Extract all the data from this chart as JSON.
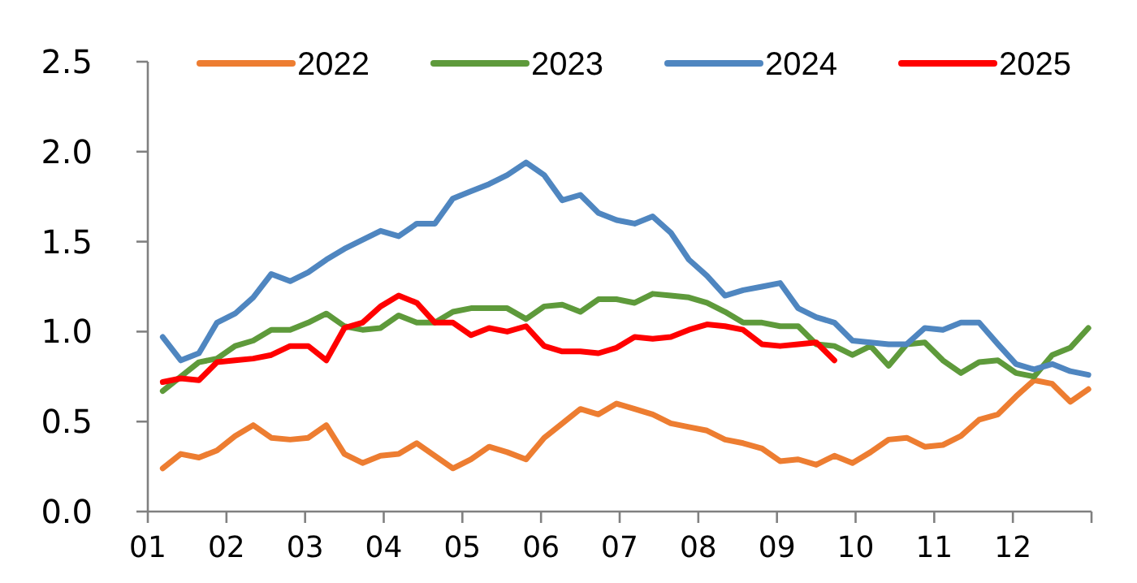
{
  "chart_data": {
    "type": "line",
    "x": [
      1.19,
      1.42,
      1.65,
      1.88,
      2.11,
      2.34,
      2.57,
      2.81,
      3.04,
      3.27,
      3.5,
      3.73,
      3.96,
      4.19,
      4.42,
      4.65,
      4.88,
      5.11,
      5.34,
      5.57,
      5.81,
      6.04,
      6.27,
      6.5,
      6.73,
      6.96,
      7.19,
      7.42,
      7.65,
      7.88,
      8.11,
      8.34,
      8.57,
      8.81,
      9.04,
      9.27,
      9.5,
      9.73,
      9.96,
      10.19,
      10.42,
      10.65,
      10.88,
      11.11,
      11.34,
      11.57,
      11.81,
      12.04,
      12.27,
      12.5,
      12.73,
      12.96
    ],
    "series": [
      {
        "name": "2022",
        "color": "#ed7d31",
        "values": [
          0.24,
          0.32,
          0.3,
          0.34,
          0.42,
          0.48,
          0.41,
          0.4,
          0.41,
          0.48,
          0.32,
          0.27,
          0.31,
          0.32,
          0.38,
          0.31,
          0.24,
          0.29,
          0.36,
          0.33,
          0.29,
          0.41,
          0.49,
          0.57,
          0.54,
          0.6,
          0.57,
          0.54,
          0.49,
          0.47,
          0.45,
          0.4,
          0.38,
          0.35,
          0.28,
          0.29,
          0.26,
          0.31,
          0.27,
          0.33,
          0.4,
          0.41,
          0.36,
          0.37,
          0.42,
          0.51,
          0.54,
          0.64,
          0.73,
          0.71,
          0.61,
          0.68
        ]
      },
      {
        "name": "2023",
        "color": "#5e9a3b",
        "values": [
          0.67,
          0.75,
          0.83,
          0.85,
          0.92,
          0.95,
          1.01,
          1.01,
          1.05,
          1.1,
          1.03,
          1.01,
          1.02,
          1.09,
          1.05,
          1.05,
          1.11,
          1.13,
          1.13,
          1.13,
          1.07,
          1.14,
          1.15,
          1.11,
          1.18,
          1.18,
          1.16,
          1.21,
          1.2,
          1.19,
          1.16,
          1.11,
          1.05,
          1.05,
          1.03,
          1.03,
          0.93,
          0.92,
          0.87,
          0.92,
          0.81,
          0.93,
          0.94,
          0.84,
          0.77,
          0.83,
          0.84,
          0.77,
          0.75,
          0.87,
          0.91,
          1.02
        ]
      },
      {
        "name": "2024",
        "color": "#4f86c0",
        "values": [
          0.97,
          0.84,
          0.88,
          1.05,
          1.1,
          1.19,
          1.32,
          1.28,
          1.33,
          1.4,
          1.46,
          1.51,
          1.56,
          1.53,
          1.6,
          1.6,
          1.74,
          1.78,
          1.82,
          1.87,
          1.94,
          1.87,
          1.73,
          1.76,
          1.66,
          1.62,
          1.6,
          1.64,
          1.55,
          1.4,
          1.31,
          1.2,
          1.23,
          1.25,
          1.27,
          1.13,
          1.08,
          1.05,
          0.95,
          0.94,
          0.93,
          0.93,
          1.02,
          1.01,
          1.05,
          1.05,
          0.93,
          0.82,
          0.79,
          0.82,
          0.78,
          0.76
        ]
      },
      {
        "name": "2025",
        "color": "#ff0000",
        "values": [
          0.72,
          0.74,
          0.73,
          0.83,
          0.84,
          0.85,
          0.87,
          0.92,
          0.92,
          0.84,
          1.02,
          1.05,
          1.14,
          1.2,
          1.16,
          1.05,
          1.05,
          0.98,
          1.02,
          1.0,
          1.03,
          0.92,
          0.89,
          0.89,
          0.88,
          0.91,
          0.97,
          0.96,
          0.97,
          1.01,
          1.04,
          1.03,
          1.01,
          0.93,
          0.92,
          0.93,
          0.94,
          0.84,
          null,
          null,
          null,
          null,
          null,
          null,
          null,
          null,
          null,
          null,
          null,
          null,
          null,
          null
        ]
      }
    ],
    "xlim": [
      1,
      13
    ],
    "xticks": [
      {
        "value": 1,
        "label": "01"
      },
      {
        "value": 2,
        "label": "02"
      },
      {
        "value": 3,
        "label": "03"
      },
      {
        "value": 4,
        "label": "04"
      },
      {
        "value": 5,
        "label": "05"
      },
      {
        "value": 6,
        "label": "06"
      },
      {
        "value": 7,
        "label": "07"
      },
      {
        "value": 8,
        "label": "08"
      },
      {
        "value": 9,
        "label": "09"
      },
      {
        "value": 10,
        "label": "10"
      },
      {
        "value": 11,
        "label": "11"
      },
      {
        "value": 12,
        "label": "12"
      },
      {
        "value": 13,
        "label": null
      }
    ],
    "ylim": [
      0,
      2.5
    ],
    "yticks": [
      {
        "value": 0,
        "label": "0.0"
      },
      {
        "value": 0.5,
        "label": "0.5"
      },
      {
        "value": 1,
        "label": "1.0"
      },
      {
        "value": 1.5,
        "label": "1.5"
      },
      {
        "value": 2,
        "label": "2.0"
      },
      {
        "value": 2.5,
        "label": "2.5"
      }
    ],
    "grid": false,
    "legend": "top",
    "marker": "none",
    "line_style": "solid"
  }
}
